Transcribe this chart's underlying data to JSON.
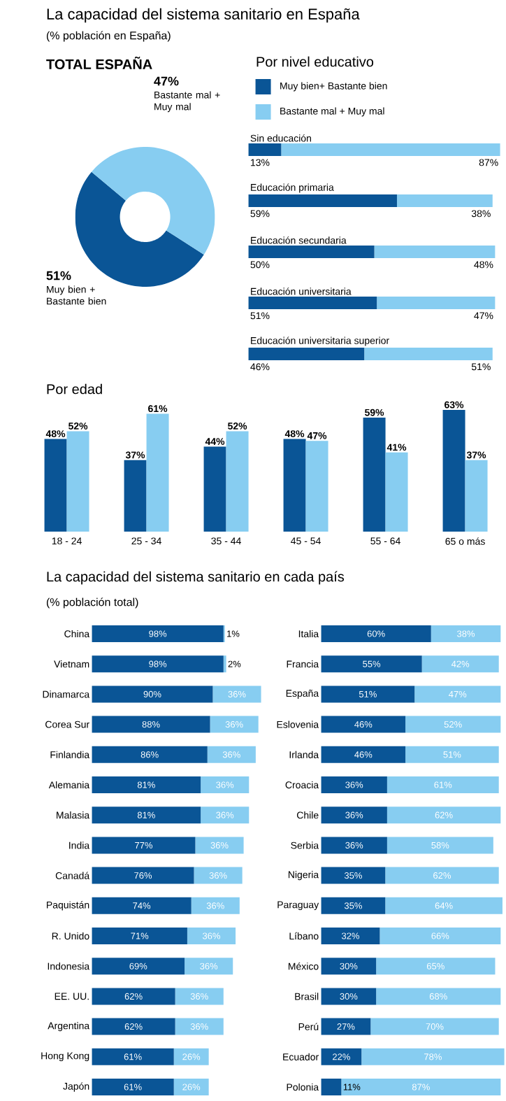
{
  "chart_data": [
    {
      "type": "donut",
      "title": "La capacidad del sistema sanitario en España",
      "subtitle": "(% población en España)",
      "annotations": [
        "TOTAL ESPAÑA"
      ],
      "categories": [
        "Muy bien + Bastante bien",
        "Bastante mal + Muy mal"
      ],
      "values": [
        51,
        47
      ],
      "value_labels": [
        "51%",
        "47%"
      ],
      "colors": [
        "#0a5596",
        "#87cdf1"
      ]
    },
    {
      "type": "bar",
      "orientation": "horizontal",
      "stacked": true,
      "title": "Por nivel educativo",
      "legend": "top",
      "categories": [
        "Sin educación",
        "Educación primaria",
        "Educación secundaria",
        "Educación universitaria",
        "Educación universitaria superior"
      ],
      "series": [
        {
          "name": "Muy bien+ Bastante bien",
          "color": "#0a5596",
          "values": [
            13,
            59,
            50,
            51,
            46
          ],
          "value_labels": [
            "13%",
            "59%",
            "50%",
            "51%",
            "46%"
          ]
        },
        {
          "name": "Bastante mal + Muy mal",
          "color": "#87cdf1",
          "values": [
            87,
            38,
            48,
            47,
            51
          ],
          "value_labels": [
            "87%",
            "38%",
            "48%",
            "47%",
            "51%"
          ]
        }
      ]
    },
    {
      "type": "bar",
      "title": "Por edad",
      "categories": [
        "18 - 24",
        "25 - 34",
        "35 - 44",
        "45 - 54",
        "55 - 64",
        "65 o más"
      ],
      "series": [
        {
          "color": "#0a5596",
          "values": [
            48,
            37,
            44,
            48,
            59,
            63
          ],
          "value_labels": [
            "48%",
            "37%",
            "44%",
            "48%",
            "59%",
            "63%"
          ]
        },
        {
          "color": "#87cdf1",
          "values": [
            52,
            61,
            52,
            47,
            41,
            37
          ],
          "value_labels": [
            "52%",
            "61%",
            "52%",
            "47%",
            "41%",
            "37%"
          ]
        }
      ]
    },
    {
      "type": "bar",
      "orientation": "horizontal",
      "stacked": true,
      "title": "La capacidad del sistema sanitario en cada país",
      "subtitle": "(% población total)",
      "categories": [
        "China",
        "Vietnam",
        "Dinamarca",
        "Corea Sur",
        "Finlandia",
        "Alemania",
        "Malasia",
        "India",
        "Canadá",
        "Paquistán",
        "R. Unido",
        "Indonesia",
        "EE. UU.",
        "Argentina",
        "Hong Kong",
        "Japón"
      ],
      "series": [
        {
          "color": "#0a5596",
          "values": [
            98,
            98,
            90,
            88,
            86,
            81,
            81,
            77,
            76,
            74,
            71,
            69,
            62,
            62,
            61,
            61
          ],
          "value_labels": [
            "98%",
            "98%",
            "90%",
            "88%",
            "86%",
            "81%",
            "81%",
            "77%",
            "76%",
            "74%",
            "71%",
            "69%",
            "62%",
            "62%",
            "61%",
            "61%"
          ]
        },
        {
          "color": "#87cdf1",
          "values": [
            1,
            2,
            36,
            36,
            36,
            36,
            36,
            36,
            36,
            36,
            36,
            36,
            36,
            36,
            26,
            26
          ],
          "value_labels": [
            "1%",
            "2%",
            "36%",
            "36%",
            "36%",
            "36%",
            "36%",
            "36%",
            "36%",
            "36%",
            "36%",
            "36%",
            "36%",
            "36%",
            "26%",
            "26%"
          ]
        }
      ]
    },
    {
      "type": "bar",
      "orientation": "horizontal",
      "stacked": true,
      "categories": [
        "Italia",
        "Francia",
        "España",
        "Eslovenia",
        "Irlanda",
        "Croacia",
        "Chile",
        "Serbia",
        "Nigeria",
        "Paraguay",
        "Líbano",
        "México",
        "Brasil",
        "Perú",
        "Ecuador",
        "Polonia"
      ],
      "series": [
        {
          "color": "#0a5596",
          "values": [
            60,
            55,
            51,
            46,
            46,
            36,
            36,
            36,
            35,
            35,
            32,
            30,
            30,
            27,
            22,
            11
          ],
          "value_labels": [
            "60%",
            "55%",
            "51%",
            "46%",
            "46%",
            "36%",
            "36%",
            "36%",
            "35%",
            "35%",
            "32%",
            "30%",
            "30%",
            "27%",
            "22%",
            "11%"
          ]
        },
        {
          "color": "#87cdf1",
          "values": [
            38,
            42,
            47,
            52,
            51,
            61,
            62,
            58,
            62,
            64,
            66,
            65,
            68,
            70,
            78,
            87
          ],
          "value_labels": [
            "38%",
            "42%",
            "47%",
            "52%",
            "51%",
            "61%",
            "62%",
            "58%",
            "62%",
            "64%",
            "66%",
            "65%",
            "68%",
            "70%",
            "78%",
            "87%"
          ]
        }
      ]
    }
  ]
}
